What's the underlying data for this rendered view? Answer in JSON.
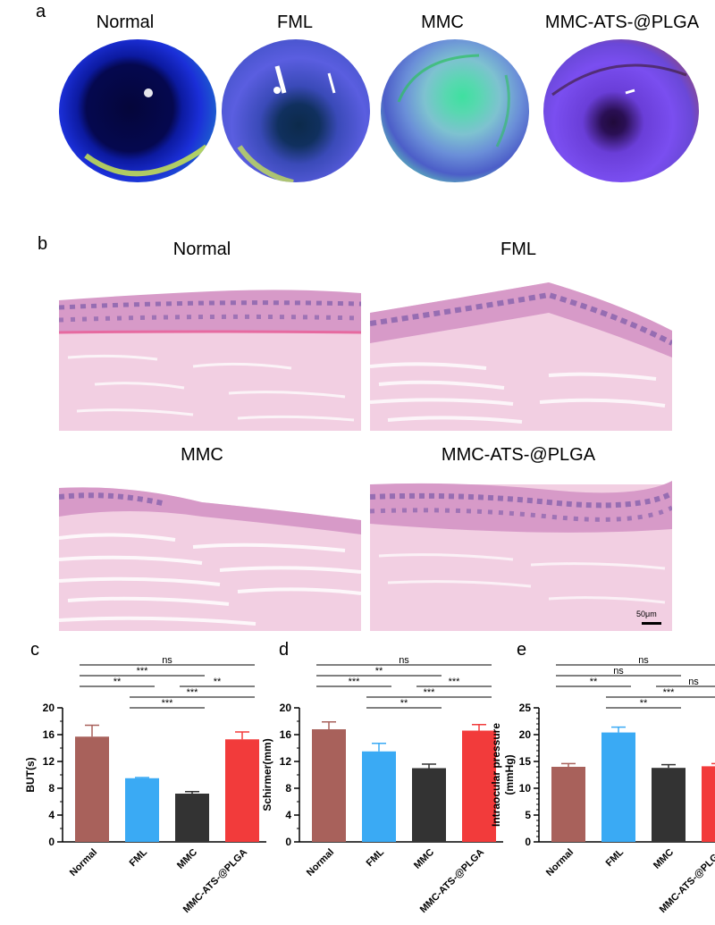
{
  "panel_a": {
    "letter": "a",
    "images": [
      {
        "label": "Normal"
      },
      {
        "label": "FML"
      },
      {
        "label": "MMC"
      },
      {
        "label": "MMC-ATS-@PLGA"
      }
    ]
  },
  "panel_b": {
    "letter": "b",
    "images": [
      {
        "label": "Normal"
      },
      {
        "label": "FML"
      },
      {
        "label": "MMC"
      },
      {
        "label": "MMC-ATS-@PLGA"
      }
    ],
    "scale_bar": "50μm"
  },
  "colors": {
    "Normal": "#a8615b",
    "FML": "#3aaaf4",
    "MMC": "#333333",
    "MMC-ATS-@PLGA": "#f23b3b"
  },
  "chart_data": [
    {
      "letter": "c",
      "type": "bar",
      "categories": [
        "Normal",
        "FML",
        "MMC",
        "MMC-ATS-@PLGA"
      ],
      "values": [
        15.7,
        9.5,
        7.2,
        15.3
      ],
      "errors": [
        1.7,
        0.1,
        0.3,
        1.1
      ],
      "ylabel": "BUT(s)",
      "ylim": [
        0,
        20
      ],
      "yticks": [
        0,
        4,
        8,
        12,
        16,
        20
      ],
      "minor_step": 2,
      "significance": [
        {
          "from": 0,
          "to": 3,
          "label": "ns",
          "level": 4
        },
        {
          "from": 0,
          "to": 2,
          "label": "***",
          "level": 3
        },
        {
          "from": 0,
          "to": 1,
          "label": "**",
          "level": 2
        },
        {
          "from": 2,
          "to": 3,
          "label": "**",
          "level": 2
        },
        {
          "from": 1,
          "to": 3,
          "label": "***",
          "level": 1
        },
        {
          "from": 1,
          "to": 2,
          "label": "***",
          "level": 0
        }
      ]
    },
    {
      "letter": "d",
      "type": "bar",
      "categories": [
        "Normal",
        "FML",
        "MMC",
        "MMC-ATS-@PLGA"
      ],
      "values": [
        16.8,
        13.5,
        11.0,
        16.6
      ],
      "errors": [
        1.1,
        1.2,
        0.6,
        0.9
      ],
      "ylabel": "Schirmer(mm)",
      "ylim": [
        0,
        20
      ],
      "yticks": [
        0,
        4,
        8,
        12,
        16,
        20
      ],
      "minor_step": 2,
      "significance": [
        {
          "from": 0,
          "to": 3,
          "label": "ns",
          "level": 4
        },
        {
          "from": 0,
          "to": 2,
          "label": "**",
          "level": 3
        },
        {
          "from": 0,
          "to": 1,
          "label": "***",
          "level": 2
        },
        {
          "from": 2,
          "to": 3,
          "label": "***",
          "level": 2
        },
        {
          "from": 1,
          "to": 3,
          "label": "***",
          "level": 1
        },
        {
          "from": 1,
          "to": 2,
          "label": "**",
          "level": 0
        }
      ]
    },
    {
      "letter": "e",
      "type": "bar",
      "categories": [
        "Normal",
        "FML",
        "MMC",
        "MMC-ATS-@PLGA"
      ],
      "values": [
        14.0,
        20.4,
        13.8,
        14.1
      ],
      "errors": [
        0.6,
        1.0,
        0.6,
        0.5
      ],
      "ylabel_lines": [
        "Intraocular pressure",
        "(mmHg)"
      ],
      "ylim": [
        0,
        25
      ],
      "yticks": [
        0,
        5,
        10,
        15,
        20,
        25
      ],
      "minor_step": 1,
      "significance": [
        {
          "from": 0,
          "to": 3,
          "label": "ns",
          "level": 4
        },
        {
          "from": 0,
          "to": 2,
          "label": "ns",
          "level": 3
        },
        {
          "from": 0,
          "to": 1,
          "label": "**",
          "level": 2
        },
        {
          "from": 2,
          "to": 3,
          "label": "ns",
          "level": 2
        },
        {
          "from": 1,
          "to": 3,
          "label": "***",
          "level": 1
        },
        {
          "from": 1,
          "to": 2,
          "label": "**",
          "level": 0
        }
      ]
    }
  ]
}
